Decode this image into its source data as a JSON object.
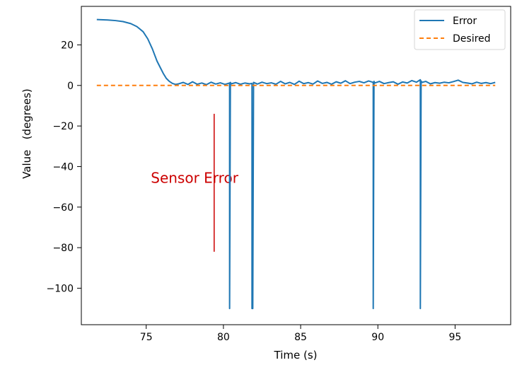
{
  "chart_data": {
    "type": "line",
    "title": "",
    "xlabel": "Time (s)",
    "ylabel": "Value   (degrees)",
    "xlim": [
      70.8,
      98.6
    ],
    "ylim": [
      -118,
      39
    ],
    "x_ticks": [
      75,
      80,
      85,
      90,
      95
    ],
    "x_tick_labels": [
      "75",
      "80",
      "85",
      "90",
      "95"
    ],
    "y_ticks": [
      20,
      0,
      -20,
      -40,
      -60,
      -80,
      -100
    ],
    "y_tick_labels": [
      "20",
      "0",
      "−20",
      "−40",
      "−60",
      "−80",
      "−100"
    ],
    "grid": false,
    "legend_position": "top-right",
    "series": [
      {
        "name": "Error",
        "color": "#1f77b4",
        "style": "solid",
        "x": [
          71.8,
          72.5,
          73.0,
          73.5,
          74.0,
          74.4,
          74.8,
          75.1,
          75.4,
          75.7,
          75.9,
          76.1,
          76.3,
          76.5,
          76.7,
          76.9,
          77.1,
          77.4,
          77.7,
          78.0,
          78.3,
          78.6,
          78.9,
          79.2,
          79.5,
          79.8,
          80.1,
          80.4,
          80.4,
          80.45,
          80.5,
          80.8,
          81.1,
          81.4,
          81.7,
          81.85,
          81.85,
          81.9,
          81.95,
          82.2,
          82.5,
          82.8,
          83.1,
          83.4,
          83.7,
          84.0,
          84.3,
          84.6,
          84.9,
          85.2,
          85.5,
          85.8,
          86.1,
          86.4,
          86.7,
          87.0,
          87.3,
          87.6,
          87.9,
          88.2,
          88.5,
          88.8,
          89.1,
          89.4,
          89.7,
          89.7,
          89.75,
          89.8,
          90.1,
          90.4,
          90.7,
          91.0,
          91.3,
          91.6,
          91.9,
          92.2,
          92.5,
          92.75,
          92.75,
          92.8,
          92.85,
          93.1,
          93.4,
          93.7,
          94.0,
          94.3,
          94.6,
          94.9,
          95.2,
          95.5,
          95.8,
          96.1,
          96.4,
          96.7,
          97.0,
          97.3,
          97.6
        ],
        "values": [
          32.5,
          32.3,
          32.0,
          31.5,
          30.5,
          29.0,
          26.5,
          23.0,
          18.0,
          12.0,
          9.0,
          6.0,
          3.5,
          2.0,
          1.0,
          0.5,
          0.8,
          1.5,
          0.5,
          1.8,
          0.6,
          1.2,
          0.4,
          1.6,
          0.7,
          1.3,
          0.5,
          1.2,
          -110.0,
          1.5,
          0.8,
          1.4,
          0.6,
          1.2,
          0.8,
          1.0,
          -110.0,
          -110.0,
          1.5,
          0.7,
          1.6,
          0.9,
          1.3,
          0.6,
          2.0,
          0.8,
          1.5,
          0.5,
          2.1,
          0.9,
          1.4,
          0.7,
          2.2,
          1.0,
          1.5,
          0.6,
          1.8,
          1.1,
          2.3,
          0.9,
          1.6,
          2.0,
          1.3,
          2.2,
          1.5,
          -110.0,
          2.0,
          1.2,
          2.0,
          0.9,
          1.4,
          1.8,
          0.6,
          1.7,
          1.2,
          2.4,
          1.6,
          2.8,
          -110.0,
          2.2,
          1.5,
          2.0,
          0.8,
          1.4,
          1.1,
          1.6,
          1.3,
          1.9,
          2.6,
          1.5,
          1.2,
          0.8,
          1.6,
          1.0,
          1.4,
          0.9,
          1.5
        ]
      },
      {
        "name": "Desired",
        "color": "#ff7f0e",
        "style": "dashed",
        "x": [
          71.8,
          97.6
        ],
        "values": [
          0,
          0
        ]
      }
    ],
    "annotations": [
      {
        "text": "Sensor Error",
        "x": 75.3,
        "y": -48,
        "color": "#cc0000"
      },
      {
        "type": "vline",
        "x": 79.4,
        "y_from": -14,
        "y_to": -82,
        "color": "#cc0000"
      }
    ]
  }
}
